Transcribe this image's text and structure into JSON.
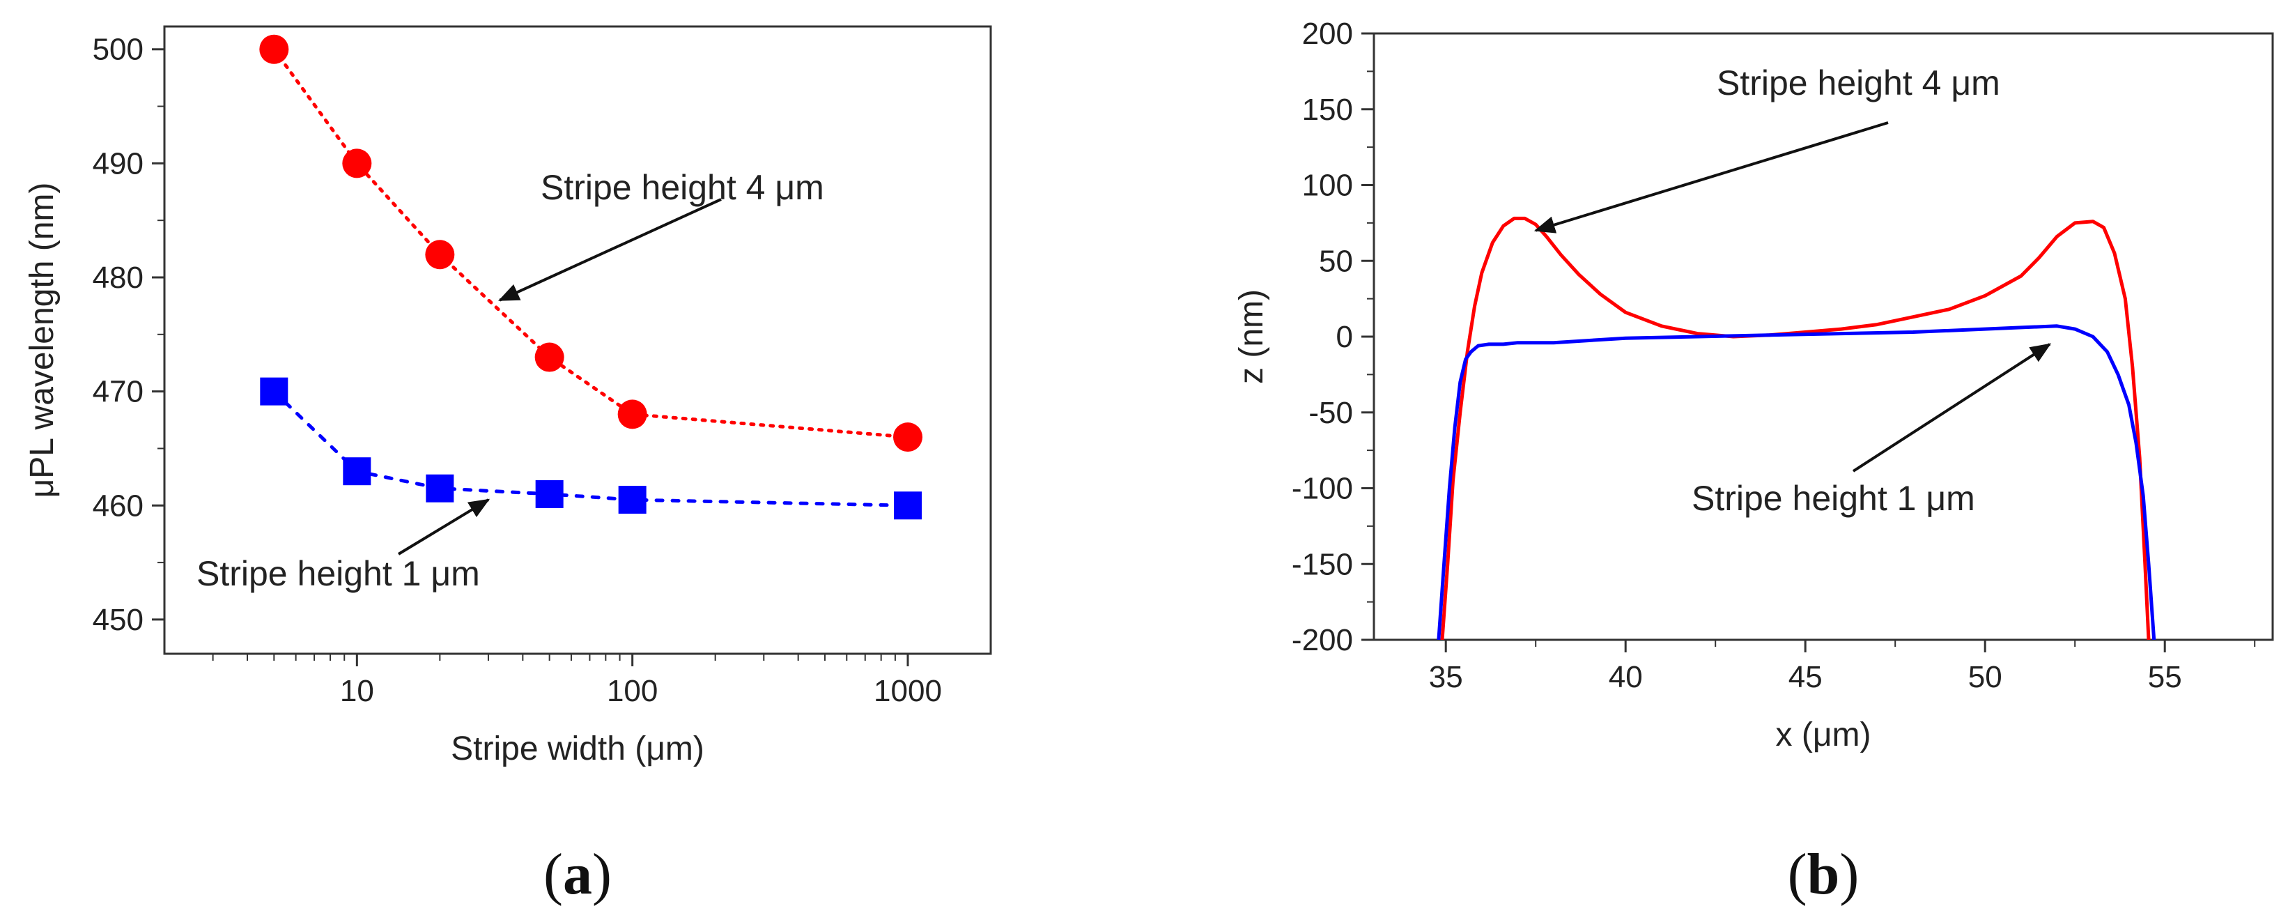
{
  "chart_data": [
    {
      "type": "scatter",
      "panel_label": "a",
      "xlabel": "Stripe width (μm)",
      "ylabel": "μPL wavelength (nm)",
      "xscale": "log",
      "xlim": [
        2,
        2000
      ],
      "ylim": [
        447,
        502
      ],
      "xticks": [
        10,
        100,
        1000
      ],
      "xtick_labels": [
        "10",
        "100",
        "1000"
      ],
      "yticks": [
        450,
        460,
        470,
        480,
        490,
        500
      ],
      "ytick_labels": [
        "450",
        "460",
        "470",
        "480",
        "490",
        "500"
      ],
      "grid": false,
      "series": [
        {
          "name": "Stripe height 4 μm",
          "color": "#ff0000",
          "marker": "circle",
          "x": [
            5,
            10,
            20,
            50,
            100,
            1000
          ],
          "y": [
            500,
            490,
            482,
            473,
            468,
            466
          ]
        },
        {
          "name": "Stripe height 1 μm",
          "color": "#0000ff",
          "marker": "square",
          "x": [
            5,
            10,
            20,
            50,
            100,
            1000
          ],
          "y": [
            470,
            463,
            461.5,
            461,
            460.5,
            460
          ]
        }
      ],
      "annotations": [
        {
          "text": "Stripe height 4 μm",
          "target": [
            33,
            478
          ]
        },
        {
          "text": "Stripe height 1 μm",
          "target": [
            30,
            460.5
          ]
        }
      ]
    },
    {
      "type": "line",
      "panel_label": "b",
      "xlabel": "x (μm)",
      "ylabel": "z (nm)",
      "xlim": [
        33,
        58
      ],
      "ylim": [
        -200,
        200
      ],
      "xticks": [
        35,
        40,
        45,
        50,
        55
      ],
      "xtick_labels": [
        "35",
        "40",
        "45",
        "50",
        "55"
      ],
      "yticks": [
        -200,
        -150,
        -100,
        -50,
        0,
        50,
        100,
        150,
        200
      ],
      "ytick_labels": [
        "-200",
        "-150",
        "-100",
        "-50",
        "0",
        "50",
        "100",
        "150",
        "200"
      ],
      "grid": false,
      "series": [
        {
          "name": "Stripe height 4 μm",
          "color": "#ff0000",
          "x": [
            34.9,
            35.05,
            35.2,
            35.4,
            35.6,
            35.8,
            36.0,
            36.3,
            36.6,
            36.9,
            37.2,
            37.5,
            37.8,
            38.2,
            38.7,
            39.3,
            40.0,
            41.0,
            42.0,
            43.0,
            44.0,
            45.0,
            46.0,
            47.0,
            48.0,
            49.0,
            50.0,
            51.0,
            51.5,
            52.0,
            52.5,
            53.0,
            53.3,
            53.6,
            53.9,
            54.1,
            54.3,
            54.45,
            54.55
          ],
          "y": [
            -200,
            -150,
            -95,
            -50,
            -10,
            20,
            42,
            62,
            73,
            78,
            78,
            74,
            66,
            54,
            41,
            28,
            16,
            7,
            2,
            0,
            1,
            3,
            5,
            8,
            13,
            18,
            27,
            40,
            52,
            66,
            75,
            76,
            72,
            55,
            25,
            -20,
            -80,
            -150,
            -200
          ],
          "label": "Stripe height 4 μm"
        },
        {
          "name": "Stripe height 1 μm",
          "color": "#0000ff",
          "x": [
            34.8,
            34.95,
            35.1,
            35.25,
            35.4,
            35.55,
            35.7,
            35.9,
            36.2,
            36.6,
            37.0,
            38.0,
            40.0,
            42.0,
            44.0,
            46.0,
            48.0,
            50.0,
            51.0,
            52.0,
            52.5,
            53.0,
            53.4,
            53.7,
            54.0,
            54.2,
            54.4,
            54.55,
            54.7
          ],
          "y": [
            -200,
            -150,
            -100,
            -60,
            -30,
            -15,
            -10,
            -6,
            -5,
            -5,
            -4,
            -4,
            -1,
            0,
            1,
            2,
            3,
            5,
            6,
            7,
            5,
            0,
            -10,
            -25,
            -45,
            -70,
            -105,
            -150,
            -200
          ],
          "label": "Stripe height 1 μm"
        }
      ],
      "annotations": [
        {
          "text": "Stripe height 4 μm",
          "target": [
            37.5,
            70
          ]
        },
        {
          "text": "Stripe height 1 μm",
          "target": [
            51.8,
            -5
          ]
        }
      ]
    }
  ]
}
